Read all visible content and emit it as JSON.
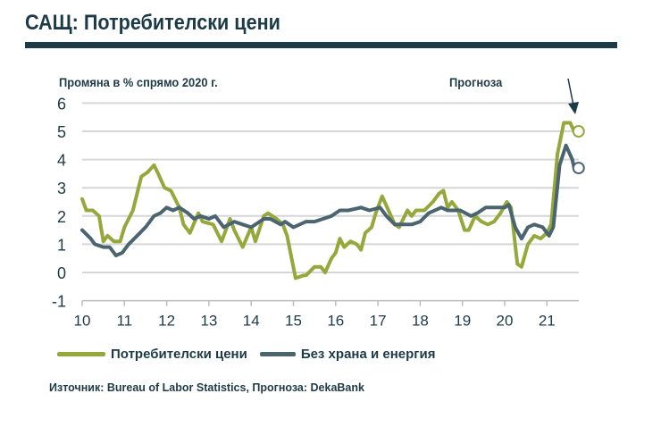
{
  "header": {
    "title": "САЩ: Потребителски цени"
  },
  "chart_data": {
    "type": "line",
    "title": "",
    "ylabel": "Промяна в % спрямо 2020 г.",
    "forecast_label": "Прогноза",
    "xlim": [
      2010,
      2021.95
    ],
    "ylim": [
      -1,
      6
    ],
    "yticks": [
      -1,
      0,
      1,
      2,
      3,
      4,
      5,
      6
    ],
    "xticks": [
      2010,
      2011,
      2012,
      2013,
      2014,
      2015,
      2016,
      2017,
      2018,
      2019,
      2020,
      2021
    ],
    "xtick_labels": [
      "10",
      "11",
      "12",
      "13",
      "14",
      "15",
      "16",
      "17",
      "18",
      "19",
      "20",
      "21"
    ],
    "grid": true,
    "legend_position": "bottom",
    "series": [
      {
        "name": "Потребителски цени",
        "color": "#95a83c",
        "x": [
          2010.0,
          2010.1,
          2010.25,
          2010.4,
          2010.5,
          2010.6,
          2010.75,
          2010.9,
          2011.0,
          2011.2,
          2011.4,
          2011.55,
          2011.7,
          2011.8,
          2011.95,
          2012.1,
          2012.3,
          2012.4,
          2012.55,
          2012.75,
          2012.85,
          2013.1,
          2013.3,
          2013.5,
          2013.6,
          2013.8,
          2014.0,
          2014.1,
          2014.3,
          2014.4,
          2014.6,
          2014.75,
          2014.85,
          2015.05,
          2015.25,
          2015.3,
          2015.5,
          2015.65,
          2015.75,
          2015.9,
          2016.0,
          2016.1,
          2016.2,
          2016.35,
          2016.5,
          2016.6,
          2016.7,
          2016.85,
          2016.95,
          2017.1,
          2017.25,
          2017.4,
          2017.5,
          2017.7,
          2017.8,
          2017.9,
          2018.1,
          2018.3,
          2018.45,
          2018.55,
          2018.65,
          2018.75,
          2018.9,
          2019.05,
          2019.15,
          2019.3,
          2019.45,
          2019.6,
          2019.75,
          2019.9,
          2020.05,
          2020.15,
          2020.3,
          2020.4,
          2020.55,
          2020.7,
          2020.85,
          2021.0,
          2021.1,
          2021.25,
          2021.4,
          2021.55
        ],
        "values": [
          2.6,
          2.2,
          2.2,
          2.0,
          1.1,
          1.3,
          1.1,
          1.1,
          1.6,
          2.2,
          3.4,
          3.55,
          3.8,
          3.5,
          3.0,
          2.9,
          2.3,
          1.7,
          1.4,
          2.1,
          1.8,
          1.7,
          1.1,
          1.9,
          1.5,
          0.9,
          1.6,
          1.1,
          2.0,
          2.1,
          1.9,
          1.7,
          1.3,
          -0.2,
          -0.1,
          -0.1,
          0.2,
          0.2,
          0.0,
          0.5,
          0.7,
          1.2,
          0.9,
          1.1,
          1.0,
          0.8,
          1.4,
          1.6,
          2.1,
          2.7,
          2.2,
          1.7,
          1.6,
          2.2,
          2.0,
          2.2,
          2.2,
          2.5,
          2.8,
          2.9,
          2.3,
          2.5,
          2.2,
          1.5,
          1.5,
          2.0,
          1.8,
          1.7,
          1.8,
          2.1,
          2.5,
          2.3,
          0.3,
          0.2,
          1.0,
          1.3,
          1.2,
          1.4,
          1.7,
          4.2,
          5.3,
          5.3
        ],
        "forecast": {
          "x": 2021.75,
          "value": 5.0
        }
      },
      {
        "name": "Без храна и енергия",
        "color": "#4a6470",
        "x": [
          2010.0,
          2010.2,
          2010.3,
          2010.5,
          2010.65,
          2010.8,
          2010.95,
          2011.1,
          2011.3,
          2011.5,
          2011.7,
          2011.85,
          2012.0,
          2012.15,
          2012.3,
          2012.5,
          2012.65,
          2012.8,
          2013.0,
          2013.15,
          2013.35,
          2013.6,
          2013.8,
          2014.0,
          2014.3,
          2014.45,
          2014.7,
          2014.8,
          2015.0,
          2015.3,
          2015.5,
          2015.7,
          2015.9,
          2016.1,
          2016.3,
          2016.6,
          2016.8,
          2017.05,
          2017.2,
          2017.4,
          2017.6,
          2017.8,
          2018.0,
          2018.2,
          2018.5,
          2018.65,
          2018.95,
          2019.2,
          2019.35,
          2019.55,
          2019.8,
          2020.0,
          2020.1,
          2020.25,
          2020.4,
          2020.55,
          2020.7,
          2020.9,
          2021.05,
          2021.15,
          2021.3,
          2021.45,
          2021.6
        ],
        "values": [
          1.5,
          1.2,
          1.0,
          0.9,
          0.9,
          0.6,
          0.7,
          1.0,
          1.3,
          1.6,
          2.0,
          2.1,
          2.3,
          2.2,
          2.3,
          2.1,
          1.9,
          2.0,
          1.9,
          2.0,
          1.6,
          1.8,
          1.7,
          1.6,
          1.9,
          1.9,
          1.7,
          1.8,
          1.6,
          1.8,
          1.8,
          1.9,
          2.0,
          2.2,
          2.2,
          2.3,
          2.2,
          2.3,
          2.0,
          1.7,
          1.7,
          1.7,
          1.8,
          2.1,
          2.3,
          2.2,
          2.2,
          2.0,
          2.1,
          2.3,
          2.3,
          2.3,
          2.4,
          1.6,
          1.2,
          1.6,
          1.7,
          1.6,
          1.3,
          1.6,
          3.8,
          4.5,
          4.0
        ],
        "forecast": {
          "x": 2021.75,
          "value": 3.7
        }
      }
    ]
  },
  "legend": {
    "items": [
      "Потребителски цени",
      "Без храна и енергия"
    ]
  },
  "footer": {
    "source": "Източник: Bureau of Labor Statistics, Прогноза: DekaBank"
  }
}
